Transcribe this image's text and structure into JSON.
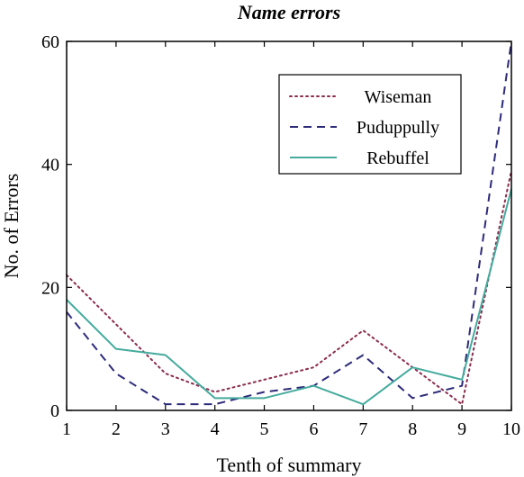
{
  "chart_data": {
    "type": "line",
    "title": "Name errors",
    "xlabel": "Tenth of summary",
    "ylabel": "No. of Errors",
    "x": [
      1,
      2,
      3,
      4,
      5,
      6,
      7,
      8,
      9,
      10
    ],
    "xlim": [
      1,
      10
    ],
    "ylim": [
      0,
      60
    ],
    "xticks": [
      1,
      2,
      3,
      4,
      5,
      6,
      7,
      8,
      9,
      10
    ],
    "yticks": [
      0,
      20,
      40,
      60
    ],
    "grid": false,
    "legend_position": "top-right",
    "series": [
      {
        "name": "Wiseman",
        "color": "#8b2c4e",
        "dash": "dotted",
        "values": [
          22,
          14,
          6,
          3,
          5,
          7,
          13,
          7,
          1,
          39
        ]
      },
      {
        "name": "Puduppully",
        "color": "#2e2b7a",
        "dash": "dashed",
        "values": [
          16,
          6,
          1,
          1,
          3,
          4,
          9,
          2,
          4,
          60
        ]
      },
      {
        "name": "Rebuffel",
        "color": "#45ab9d",
        "dash": "solid",
        "values": [
          18,
          10,
          9,
          2,
          2,
          4,
          1,
          7,
          5,
          36
        ]
      }
    ]
  }
}
